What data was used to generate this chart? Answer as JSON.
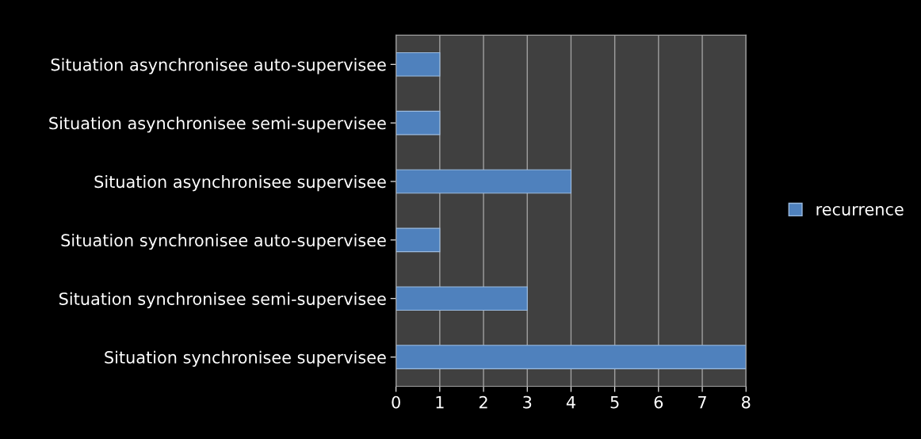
{
  "chart_data": {
    "type": "bar",
    "orientation": "horizontal",
    "categories": [
      "Situation asynchronisee auto-supervisee",
      "Situation asynchronisee semi-supervisee",
      "Situation asynchronisee supervisee",
      "Situation synchronisee auto-supervisee",
      "Situation synchronisee semi-supervisee",
      "Situation synchronisee supervisee"
    ],
    "series": [
      {
        "name": "recurrence",
        "color": "#4f81bd",
        "values": [
          1,
          1,
          4,
          1,
          3,
          8
        ]
      }
    ],
    "xlim": [
      0,
      8
    ],
    "xticks": [
      0,
      1,
      2,
      3,
      4,
      5,
      6,
      7,
      8
    ],
    "grid": "x",
    "legend": "right"
  }
}
